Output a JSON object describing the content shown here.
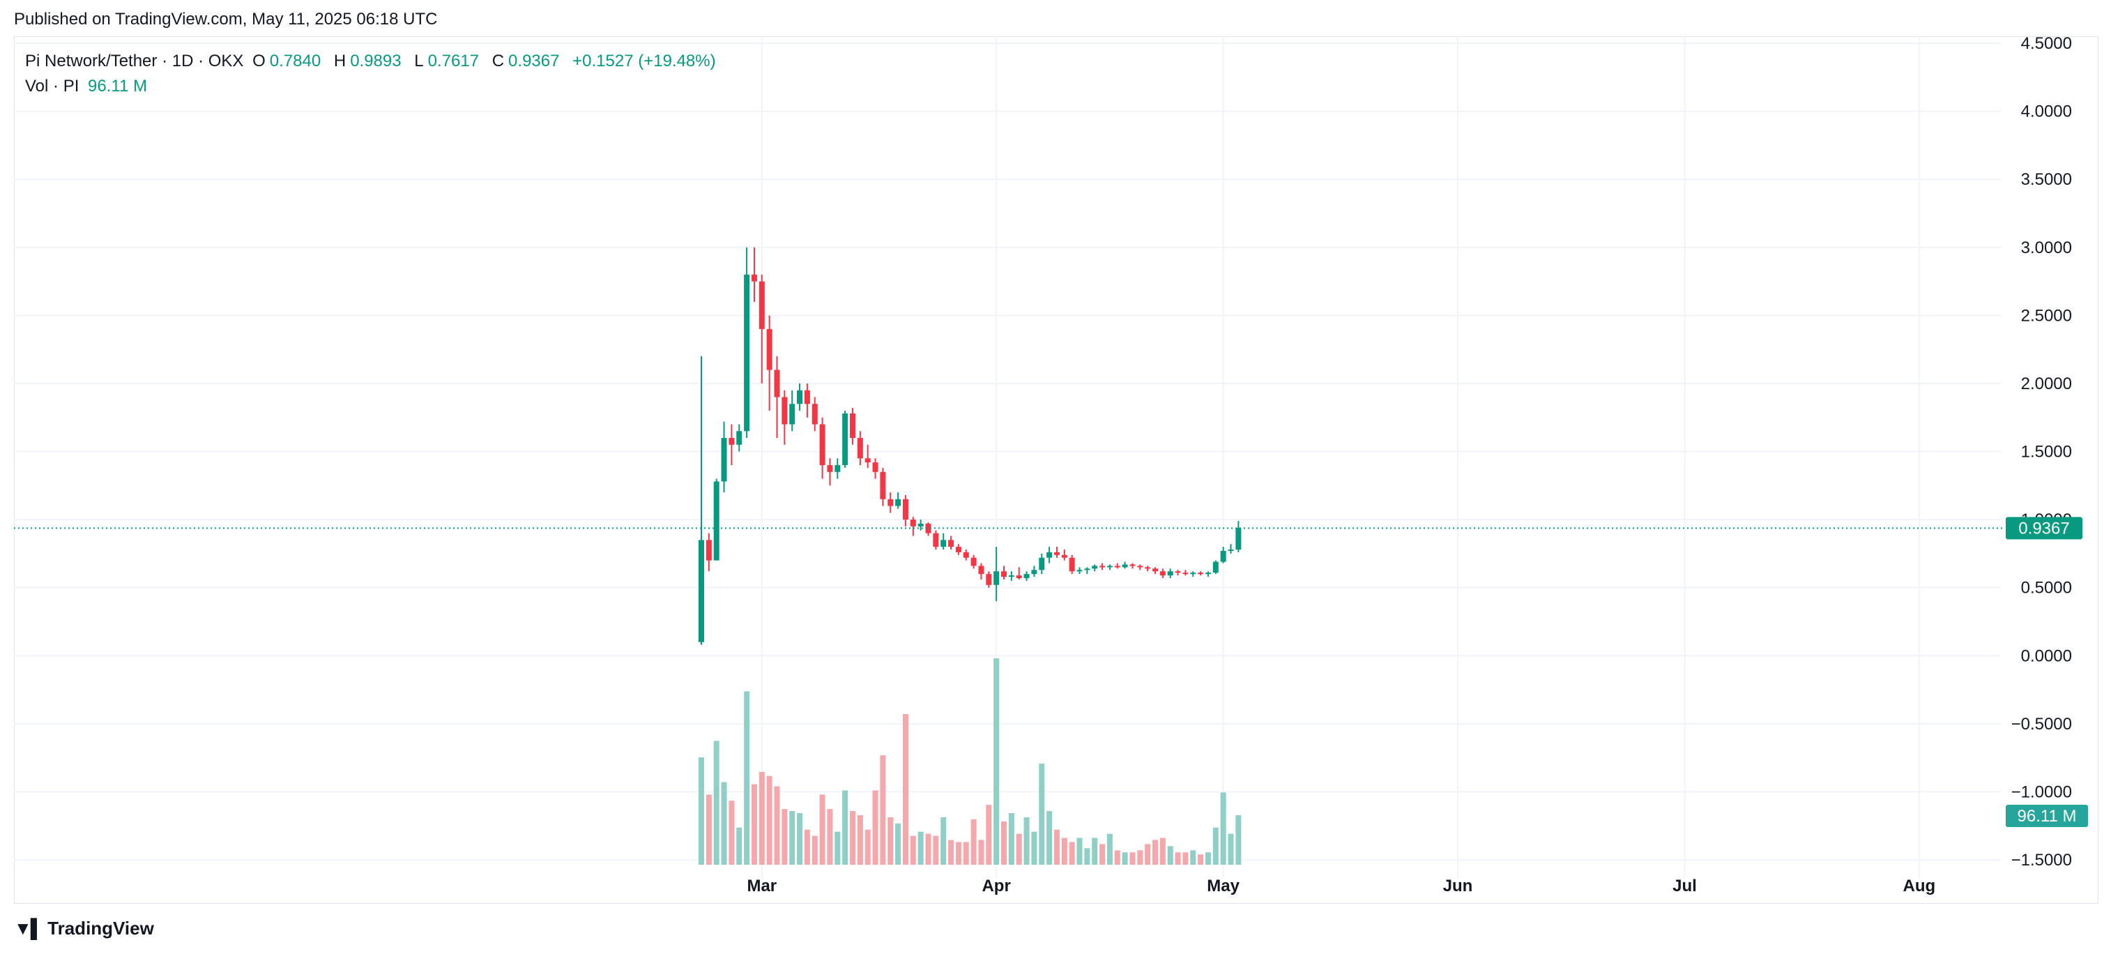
{
  "header": {
    "published": "Published on TradingView.com, May 11, 2025 06:18 UTC"
  },
  "legend": {
    "symbol": "Pi Network/Tether · 1D · OKX",
    "o_label": "O",
    "o_value": "0.7840",
    "h_label": "H",
    "h_value": "0.9893",
    "l_label": "L",
    "l_value": "0.7617",
    "c_label": "C",
    "c_value": "0.9367",
    "change": "+0.1527 (+19.48%)",
    "vol_label": "Vol · PI",
    "vol_value": "96.11 M"
  },
  "footer": {
    "brand": "TradingView"
  },
  "colors": {
    "up": "#089981",
    "down": "#f23645",
    "vol_up": "#8fcfc6",
    "vol_down": "#f5a8ab",
    "grid": "#f0f3fa",
    "price_line": "#089981"
  },
  "chart_data": {
    "type": "candlestick",
    "y_ticks": [
      "4.5000",
      "4.0000",
      "3.5000",
      "3.0000",
      "2.5000",
      "2.0000",
      "1.5000",
      "1.0000",
      "0.5000",
      "0.0000",
      "−0.5000",
      "−1.0000",
      "−1.5000"
    ],
    "ylim": [
      -1.68,
      4.5
    ],
    "x_ticks": [
      {
        "label": "Mar",
        "day": 8
      },
      {
        "label": "Apr",
        "day": 39
      },
      {
        "label": "May",
        "day": 69
      },
      {
        "label": "Jun",
        "day": 100
      },
      {
        "label": "Jul",
        "day": 130
      },
      {
        "label": "Aug",
        "day": 161
      }
    ],
    "last_price": "0.9367",
    "last_volume": "96.11 M",
    "candles": [
      [
        0.1,
        2.2,
        0.08,
        0.85
      ],
      [
        0.85,
        0.9,
        0.62,
        0.7
      ],
      [
        0.7,
        1.3,
        0.7,
        1.28
      ],
      [
        1.28,
        1.72,
        1.2,
        1.6
      ],
      [
        1.6,
        1.7,
        1.4,
        1.55
      ],
      [
        1.55,
        1.7,
        1.5,
        1.65
      ],
      [
        1.65,
        3.0,
        1.6,
        2.8
      ],
      [
        2.8,
        3.0,
        2.6,
        2.75
      ],
      [
        2.75,
        2.8,
        2.0,
        2.4
      ],
      [
        2.4,
        2.5,
        1.8,
        2.1
      ],
      [
        2.1,
        2.2,
        1.6,
        1.9
      ],
      [
        1.9,
        1.95,
        1.55,
        1.7
      ],
      [
        1.7,
        1.95,
        1.65,
        1.85
      ],
      [
        1.85,
        2.0,
        1.8,
        1.95
      ],
      [
        1.95,
        2.0,
        1.75,
        1.85
      ],
      [
        1.85,
        1.9,
        1.65,
        1.7
      ],
      [
        1.7,
        1.75,
        1.3,
        1.4
      ],
      [
        1.4,
        1.45,
        1.25,
        1.35
      ],
      [
        1.35,
        1.45,
        1.3,
        1.4
      ],
      [
        1.4,
        1.8,
        1.38,
        1.78
      ],
      [
        1.78,
        1.82,
        1.55,
        1.6
      ],
      [
        1.6,
        1.65,
        1.4,
        1.45
      ],
      [
        1.45,
        1.55,
        1.38,
        1.42
      ],
      [
        1.42,
        1.45,
        1.3,
        1.35
      ],
      [
        1.35,
        1.38,
        1.1,
        1.15
      ],
      [
        1.15,
        1.2,
        1.05,
        1.1
      ],
      [
        1.1,
        1.2,
        1.08,
        1.15
      ],
      [
        1.15,
        1.18,
        0.95,
        1.0
      ],
      [
        1.0,
        1.02,
        0.88,
        0.95
      ],
      [
        0.95,
        1.0,
        0.92,
        0.97
      ],
      [
        0.97,
        0.98,
        0.88,
        0.9
      ],
      [
        0.9,
        0.92,
        0.78,
        0.8
      ],
      [
        0.8,
        0.9,
        0.78,
        0.85
      ],
      [
        0.85,
        0.88,
        0.78,
        0.8
      ],
      [
        0.8,
        0.82,
        0.74,
        0.76
      ],
      [
        0.76,
        0.78,
        0.7,
        0.72
      ],
      [
        0.72,
        0.74,
        0.64,
        0.66
      ],
      [
        0.66,
        0.68,
        0.56,
        0.6
      ],
      [
        0.6,
        0.62,
        0.5,
        0.52
      ],
      [
        0.52,
        0.8,
        0.4,
        0.62
      ],
      [
        0.62,
        0.66,
        0.56,
        0.58
      ],
      [
        0.58,
        0.62,
        0.55,
        0.59
      ],
      [
        0.59,
        0.65,
        0.56,
        0.57
      ],
      [
        0.57,
        0.62,
        0.55,
        0.6
      ],
      [
        0.6,
        0.66,
        0.58,
        0.63
      ],
      [
        0.63,
        0.75,
        0.6,
        0.72
      ],
      [
        0.72,
        0.8,
        0.68,
        0.76
      ],
      [
        0.76,
        0.8,
        0.72,
        0.74
      ],
      [
        0.74,
        0.78,
        0.7,
        0.72
      ],
      [
        0.72,
        0.74,
        0.6,
        0.62
      ],
      [
        0.62,
        0.65,
        0.6,
        0.63
      ],
      [
        0.63,
        0.65,
        0.6,
        0.64
      ],
      [
        0.64,
        0.67,
        0.62,
        0.66
      ],
      [
        0.66,
        0.68,
        0.63,
        0.65
      ],
      [
        0.65,
        0.67,
        0.63,
        0.66
      ],
      [
        0.66,
        0.68,
        0.64,
        0.65
      ],
      [
        0.65,
        0.69,
        0.64,
        0.67
      ],
      [
        0.67,
        0.68,
        0.64,
        0.66
      ],
      [
        0.66,
        0.67,
        0.63,
        0.65
      ],
      [
        0.65,
        0.66,
        0.62,
        0.64
      ],
      [
        0.64,
        0.65,
        0.6,
        0.62
      ],
      [
        0.62,
        0.64,
        0.57,
        0.59
      ],
      [
        0.59,
        0.64,
        0.57,
        0.62
      ],
      [
        0.62,
        0.63,
        0.59,
        0.61
      ],
      [
        0.61,
        0.63,
        0.59,
        0.6
      ],
      [
        0.6,
        0.62,
        0.58,
        0.61
      ],
      [
        0.61,
        0.62,
        0.59,
        0.6
      ],
      [
        0.6,
        0.62,
        0.58,
        0.61
      ],
      [
        0.61,
        0.7,
        0.6,
        0.69
      ],
      [
        0.69,
        0.8,
        0.68,
        0.77
      ],
      [
        0.77,
        0.82,
        0.75,
        0.78
      ],
      [
        0.78,
        0.99,
        0.76,
        0.94
      ]
    ],
    "volume_heights_rel": [
      0.52,
      0.34,
      0.6,
      0.4,
      0.31,
      0.18,
      0.84,
      0.39,
      0.45,
      0.43,
      0.38,
      0.27,
      0.26,
      0.25,
      0.17,
      0.14,
      0.34,
      0.27,
      0.16,
      0.36,
      0.26,
      0.24,
      0.17,
      0.36,
      0.53,
      0.23,
      0.2,
      0.73,
      0.14,
      0.16,
      0.15,
      0.14,
      0.23,
      0.12,
      0.11,
      0.11,
      0.22,
      0.12,
      0.29,
      1.0,
      0.21,
      0.25,
      0.15,
      0.23,
      0.16,
      0.49,
      0.26,
      0.17,
      0.13,
      0.11,
      0.13,
      0.08,
      0.13,
      0.1,
      0.15,
      0.07,
      0.06,
      0.06,
      0.07,
      0.1,
      0.12,
      0.13,
      0.09,
      0.06,
      0.06,
      0.07,
      0.05,
      0.06,
      0.18,
      0.35,
      0.15,
      0.24
    ]
  }
}
